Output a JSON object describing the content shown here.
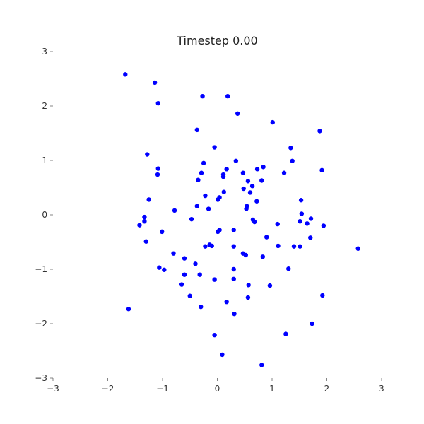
{
  "chart_data": {
    "type": "scatter",
    "title": "Timestep 0.00",
    "xlabel": "",
    "ylabel": "",
    "xlim": [
      -3,
      3
    ],
    "ylim": [
      -3,
      3
    ],
    "grid": false,
    "xticks": [
      -3,
      -2,
      -1,
      0,
      1,
      2,
      3
    ],
    "yticks": [
      -3,
      -2,
      -1,
      0,
      1,
      2,
      3
    ],
    "xtick_labels": [
      "−3",
      "−2",
      "−1",
      "0",
      "1",
      "2",
      "3"
    ],
    "ytick_labels": [
      "−3",
      "−2",
      "−1",
      "0",
      "1",
      "2",
      "3"
    ],
    "point_color": "#0000ff",
    "points": [
      [
        -1.68,
        2.58
      ],
      [
        -1.14,
        2.43
      ],
      [
        -1.08,
        2.05
      ],
      [
        -0.27,
        2.18
      ],
      [
        0.19,
        2.18
      ],
      [
        0.37,
        1.86
      ],
      [
        1.01,
        1.7
      ],
      [
        1.87,
        1.54
      ],
      [
        -0.37,
        1.56
      ],
      [
        -0.05,
        1.24
      ],
      [
        1.34,
        1.23
      ],
      [
        -1.28,
        1.11
      ],
      [
        0.34,
        0.99
      ],
      [
        1.37,
        0.99
      ],
      [
        -0.25,
        0.95
      ],
      [
        0.84,
        0.88
      ],
      [
        0.73,
        0.84
      ],
      [
        -1.08,
        0.85
      ],
      [
        0.17,
        0.84
      ],
      [
        1.91,
        0.82
      ],
      [
        -0.29,
        0.77
      ],
      [
        0.47,
        0.77
      ],
      [
        1.22,
        0.77
      ],
      [
        0.11,
        0.74
      ],
      [
        -1.09,
        0.74
      ],
      [
        0.11,
        0.7
      ],
      [
        -0.35,
        0.64
      ],
      [
        0.56,
        0.62
      ],
      [
        0.81,
        0.63
      ],
      [
        0.64,
        0.53
      ],
      [
        0.48,
        0.48
      ],
      [
        0.6,
        0.41
      ],
      [
        0.12,
        0.42
      ],
      [
        -0.22,
        0.35
      ],
      [
        0.04,
        0.32
      ],
      [
        -1.25,
        0.28
      ],
      [
        0.01,
        0.28
      ],
      [
        0.72,
        0.25
      ],
      [
        1.53,
        0.27
      ],
      [
        -0.37,
        0.16
      ],
      [
        0.54,
        0.16
      ],
      [
        0.53,
        0.11
      ],
      [
        -0.16,
        0.11
      ],
      [
        -0.78,
        0.08
      ],
      [
        1.54,
        0.02
      ],
      [
        -1.33,
        -0.04
      ],
      [
        -0.47,
        -0.08
      ],
      [
        0.65,
        -0.09
      ],
      [
        1.71,
        -0.07
      ],
      [
        -1.33,
        -0.12
      ],
      [
        1.51,
        -0.12
      ],
      [
        0.68,
        -0.13
      ],
      [
        1.1,
        -0.17
      ],
      [
        1.64,
        -0.16
      ],
      [
        -1.42,
        -0.19
      ],
      [
        1.94,
        -0.2
      ],
      [
        0.04,
        -0.28
      ],
      [
        0.3,
        -0.28
      ],
      [
        -1.01,
        -0.31
      ],
      [
        0.01,
        -0.31
      ],
      [
        0.9,
        -0.41
      ],
      [
        1.7,
        -0.42
      ],
      [
        -1.3,
        -0.49
      ],
      [
        -0.14,
        -0.55
      ],
      [
        -0.1,
        -0.57
      ],
      [
        -0.22,
        -0.58
      ],
      [
        0.3,
        -0.58
      ],
      [
        1.11,
        -0.57
      ],
      [
        1.4,
        -0.58
      ],
      [
        1.51,
        -0.58
      ],
      [
        2.57,
        -0.62
      ],
      [
        -0.8,
        -0.71
      ],
      [
        0.47,
        -0.71
      ],
      [
        0.52,
        -0.74
      ],
      [
        0.83,
        -0.77
      ],
      [
        -0.6,
        -0.8
      ],
      [
        -0.4,
        -0.9
      ],
      [
        -1.06,
        -0.97
      ],
      [
        -0.97,
        -1.01
      ],
      [
        1.3,
        -0.99
      ],
      [
        0.3,
        -1.0
      ],
      [
        -0.6,
        -1.1
      ],
      [
        -0.32,
        -1.1
      ],
      [
        -0.05,
        -1.19
      ],
      [
        0.3,
        -1.18
      ],
      [
        -0.65,
        -1.28
      ],
      [
        0.57,
        -1.29
      ],
      [
        0.96,
        -1.3
      ],
      [
        -0.5,
        -1.49
      ],
      [
        0.56,
        -1.52
      ],
      [
        1.92,
        -1.48
      ],
      [
        -1.62,
        -1.73
      ],
      [
        -0.3,
        -1.69
      ],
      [
        0.17,
        -1.6
      ],
      [
        0.31,
        -1.82
      ],
      [
        1.73,
        -2.0
      ],
      [
        -0.05,
        -2.21
      ],
      [
        1.25,
        -2.19
      ],
      [
        0.09,
        -2.57
      ],
      [
        0.81,
        -2.76
      ]
    ]
  }
}
